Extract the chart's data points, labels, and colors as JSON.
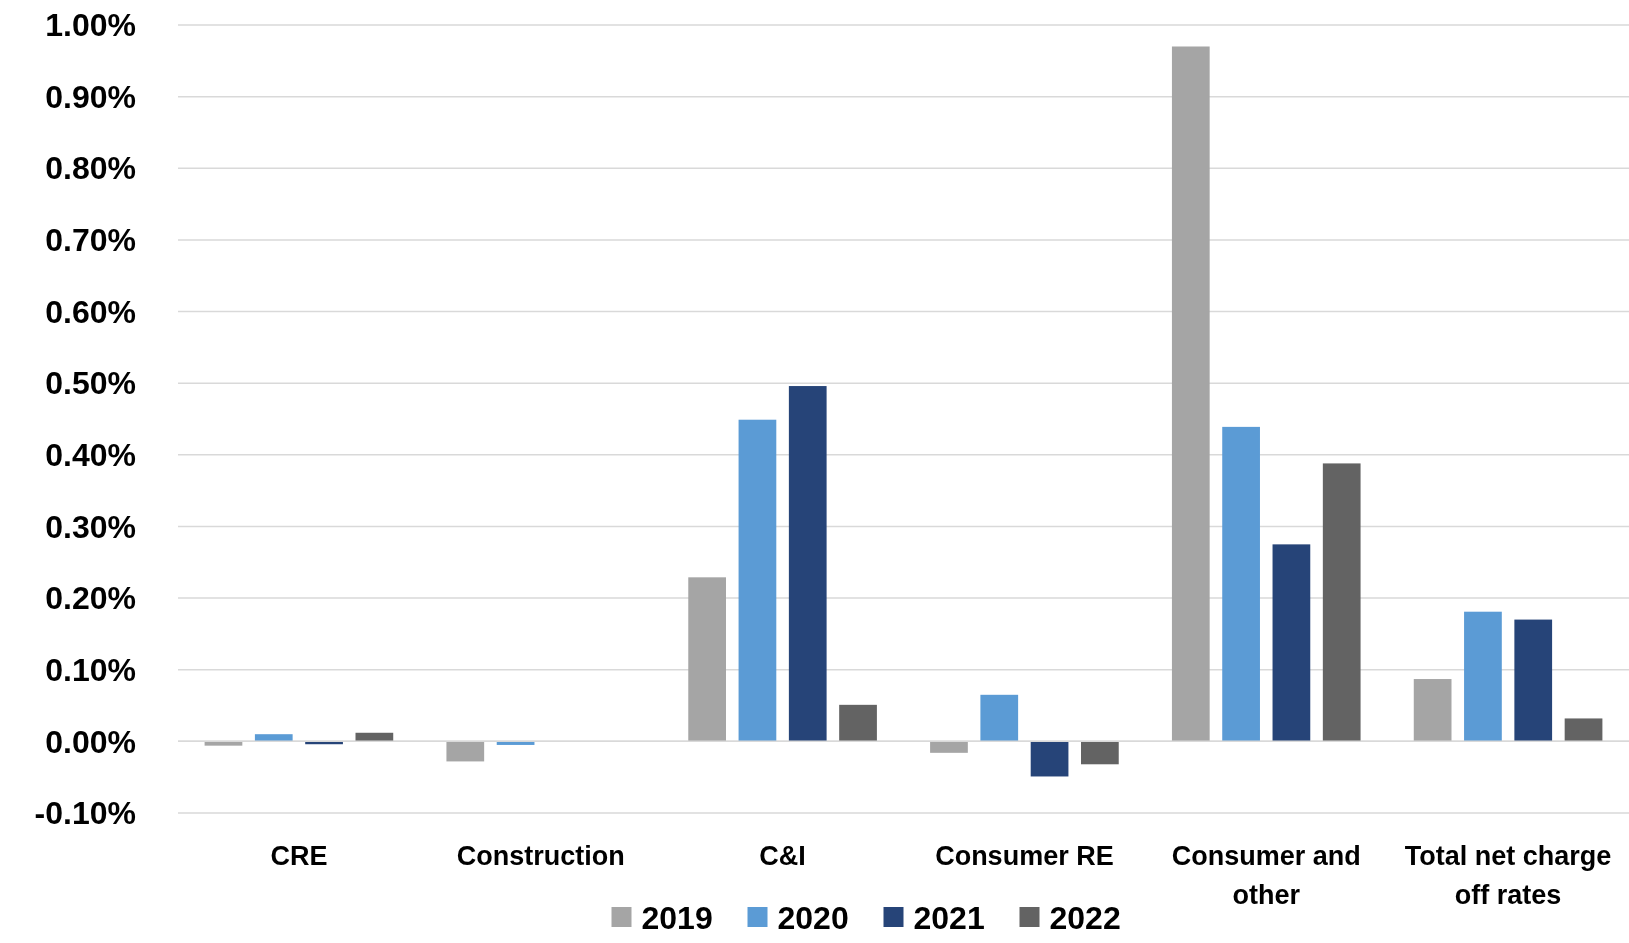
{
  "chart_data": {
    "type": "bar",
    "categories": [
      "CRE",
      "Construction",
      "C&I",
      "Consumer RE",
      "Consumer and other",
      "Total net charge off rates"
    ],
    "series": [
      {
        "name": "2019",
        "color": "#a5a5a5",
        "values": [
          -0.006,
          -0.028,
          0.229,
          -0.016,
          0.97,
          0.087
        ]
      },
      {
        "name": "2020",
        "color": "#5b9bd5",
        "values": [
          0.01,
          -0.005,
          0.449,
          0.065,
          0.439,
          0.181
        ]
      },
      {
        "name": "2021",
        "color": "#264478",
        "values": [
          -0.004,
          0,
          0.496,
          -0.049,
          0.275,
          0.17
        ]
      },
      {
        "name": "2022",
        "color": "#636363",
        "values": [
          0.012,
          0,
          0.051,
          -0.032,
          0.388,
          0.032
        ]
      }
    ],
    "ylim": [
      -0.1,
      1
    ],
    "yticks": [
      {
        "value": -0.1,
        "label": "-0.10%"
      },
      {
        "value": 0,
        "label": "0.00%"
      },
      {
        "value": 0.1,
        "label": "0.10%"
      },
      {
        "value": 0.2,
        "label": "0.20%"
      },
      {
        "value": 0.3,
        "label": "0.30%"
      },
      {
        "value": 0.4,
        "label": "0.40%"
      },
      {
        "value": 0.5,
        "label": "0.50%"
      },
      {
        "value": 0.6,
        "label": "0.60%"
      },
      {
        "value": 0.7,
        "label": "0.70%"
      },
      {
        "value": 0.8,
        "label": "0.80%"
      },
      {
        "value": 0.9,
        "label": "0.90%"
      },
      {
        "value": 1,
        "label": "1.00%"
      }
    ],
    "grid": "y",
    "legend": "bottom"
  }
}
